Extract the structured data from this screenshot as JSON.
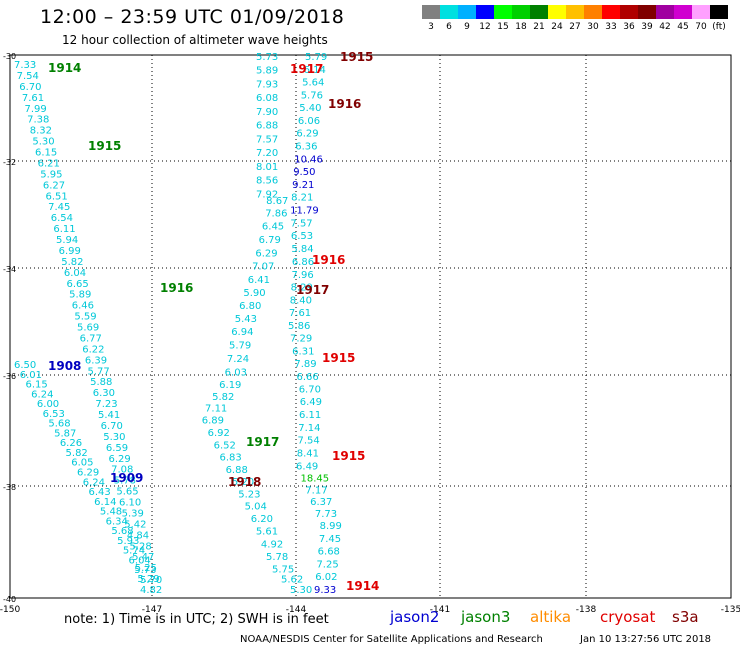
{
  "header": {
    "title": "12:00 – 23:59 UTC 01/09/2018",
    "subtitle": "12 hour collection of altimeter wave heights"
  },
  "colorbar": {
    "colors": [
      "#808080",
      "#00e0e0",
      "#00b0ff",
      "#0000ff",
      "#00ff00",
      "#00d000",
      "#008000",
      "#ffff00",
      "#ffc000",
      "#ff8000",
      "#ff0000",
      "#b00000",
      "#800000",
      "#a000a0",
      "#d000d0",
      "#ffa0ff",
      "#000000"
    ],
    "labels": [
      "3",
      "6",
      "9",
      "12",
      "15",
      "18",
      "21",
      "24",
      "27",
      "30",
      "33",
      "36",
      "39",
      "42",
      "45",
      "70",
      "(ft)"
    ]
  },
  "axes": {
    "x_ticks": [
      "-150",
      "-147",
      "-144",
      "-141",
      "-138",
      "-135"
    ],
    "y_ticks": [
      "-30",
      "-32",
      "-34",
      "-36",
      "-38",
      "-40"
    ]
  },
  "footer": {
    "note": "note:  1) Time is in UTC;  2) SWH is in feet",
    "satellites": [
      {
        "name": "jason2",
        "color": "#0000d0"
      },
      {
        "name": "jason3",
        "color": "#008000"
      },
      {
        "name": "altika",
        "color": "#ff8c00"
      },
      {
        "name": "cryosat",
        "color": "#e00000"
      },
      {
        "name": "s3a",
        "color": "#800000"
      }
    ],
    "credit": "NOAA/NESDIS Center for Satellite Applications and Research",
    "timestamp": "Jan 10 13:27:56 UTC 2018"
  },
  "tracks": [
    {
      "id": "t1914",
      "color": "#00c8d8",
      "values": [
        "7.33",
        "7.54",
        "6.70",
        "7.61",
        "7.99",
        "7.38",
        "8.32",
        "5.30",
        "6.15",
        "6.21",
        "5.95",
        "6.27",
        "6.51",
        "7.45",
        "6.54",
        "6.11",
        "5.94",
        "6.99",
        "5.82",
        "6.04",
        "6.65",
        "5.89",
        "6.46",
        "5.59",
        "5.69",
        "6.77",
        "6.22",
        "6.39",
        "5.77",
        "5.88",
        "6.30",
        "7.23",
        "5.41",
        "6.70",
        "5.30",
        "6.59",
        "6.29",
        "7.08",
        "5.78",
        "5.65",
        "6.10",
        "5.39",
        "5.42",
        "4.84",
        "5.28",
        "5.47",
        "5.25",
        "5.29",
        "4.82"
      ]
    },
    {
      "id": "t1908",
      "color": "#00c8d8",
      "values": [
        "6.50",
        "6.01",
        "6.15",
        "6.24",
        "6.00",
        "6.53",
        "5.68",
        "5.87",
        "6.26",
        "5.82",
        "6.05",
        "6.29",
        "6.24",
        "6.43",
        "6.14",
        "5.48",
        "6.34",
        "5.68",
        "5.93",
        "5.74",
        "6.04",
        "5.73",
        "5.70"
      ]
    },
    {
      "id": "t1916a",
      "color": "#00c8d8",
      "values": [
        "5.73",
        "5.89",
        "7.93",
        "6.08",
        "7.90",
        "6.88",
        "7.57",
        "7.20",
        "8.01",
        "8.56",
        "7.92",
        "8.67",
        "7.86",
        "6.45",
        "6.79",
        "6.29",
        "7.07",
        "6.41",
        "5.90",
        "6.80",
        "5.43",
        "6.94",
        "5.79",
        "7.24",
        "6.03",
        "6.19",
        "5.82",
        "7.11",
        "6.89",
        "6.92",
        "6.52",
        "6.83",
        "6.88",
        "5.20",
        "5.23",
        "5.04",
        "6.20",
        "5.61",
        "4.92",
        "5.78",
        "5.75",
        "5.62",
        "5.30"
      ]
    },
    {
      "id": "t1915b",
      "color": "#00c8d8",
      "values": [
        "5.79",
        "6.14",
        "5.64",
        "5.76",
        "5.40",
        "6.06",
        "6.29",
        "6.36",
        "10.46",
        "9.50",
        "9.21",
        "8.21",
        "11.79",
        "7.57",
        "6.53",
        "5.84",
        "6.86",
        "7.96",
        "8.29",
        "8.40",
        "7.61",
        "5.86",
        "7.29",
        "6.31",
        "7.89",
        "6.66",
        "6.70",
        "6.49",
        "6.11",
        "7.14",
        "7.54",
        "8.41",
        "6.49",
        "18.45",
        "7.17",
        "6.37",
        "7.73",
        "8.99",
        "7.45",
        "6.68",
        "7.25",
        "6.02",
        "9.33"
      ]
    }
  ],
  "pass_labels": [
    {
      "text": "1914",
      "color": "#008000"
    },
    {
      "text": "1915",
      "color": "#008000"
    },
    {
      "text": "1916",
      "color": "#008000"
    },
    {
      "text": "1908",
      "color": "#0000c0"
    },
    {
      "text": "1909",
      "color": "#0000c0"
    },
    {
      "text": "1917",
      "color": "#008000"
    },
    {
      "text": "1918",
      "color": "#800000"
    },
    {
      "text": "1915",
      "color": "#800000"
    },
    {
      "text": "1917",
      "color": "#e00000"
    },
    {
      "text": "1916",
      "color": "#800000"
    },
    {
      "text": "1916",
      "color": "#e00000"
    },
    {
      "text": "1917",
      "color": "#800000"
    },
    {
      "text": "1915",
      "color": "#e00000"
    },
    {
      "text": "1915",
      "color": "#e00000"
    },
    {
      "text": "1914",
      "color": "#e00000"
    }
  ]
}
